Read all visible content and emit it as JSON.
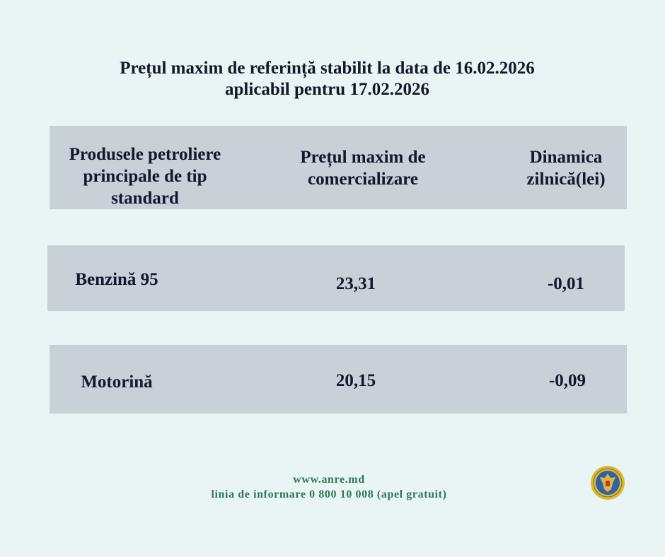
{
  "title": {
    "line1": "Prețul maxim de referință stabilit la data de 16.02.2026",
    "line2": "aplicabil pentru 17.02.2026"
  },
  "table": {
    "headers": [
      {
        "line1": "Produsele petroliere",
        "line2": "principale de tip",
        "line3": "standard"
      },
      {
        "line1": "Prețul maxim de",
        "line2": "comercializare"
      },
      {
        "line1": "Dinamica",
        "line2": "zilnică(lei)"
      }
    ],
    "rows": [
      {
        "product": "Benzină 95",
        "price": "23,31",
        "change": "-0,01"
      },
      {
        "product": "Motorină",
        "price": "20,15",
        "change": "-0,09"
      }
    ]
  },
  "footer": {
    "website": "www.anre.md",
    "hotline": "linia de informare 0 800 10 008 (apel gratuit)"
  },
  "logo": {
    "icon": "anre-seal-icon"
  },
  "colors": {
    "background": "#e8f5f4",
    "box": "#c8d0d8",
    "footer_text": "#2e7a4e"
  }
}
